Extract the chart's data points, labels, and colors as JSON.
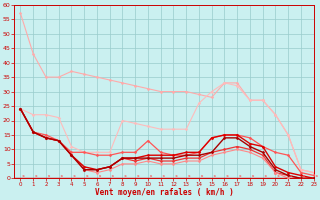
{
  "xlabel": "Vent moyen/en rafales ( km/h )",
  "xlim": [
    -0.5,
    23
  ],
  "ylim": [
    0,
    60
  ],
  "yticks": [
    0,
    5,
    10,
    15,
    20,
    25,
    30,
    35,
    40,
    45,
    50,
    55,
    60
  ],
  "xticks": [
    0,
    1,
    2,
    3,
    4,
    5,
    6,
    7,
    8,
    9,
    10,
    11,
    12,
    13,
    14,
    15,
    16,
    17,
    18,
    19,
    20,
    21,
    22,
    23
  ],
  "background_color": "#caf0f0",
  "grid_color": "#99cccc",
  "lines": [
    {
      "x": [
        0,
        1,
        2,
        3,
        4,
        5,
        6,
        7,
        8,
        9,
        10,
        11,
        12,
        13,
        14,
        15,
        16,
        17,
        18,
        19,
        20,
        21,
        22,
        23
      ],
      "y": [
        57,
        43,
        35,
        35,
        37,
        36,
        35,
        34,
        33,
        32,
        31,
        30,
        30,
        30,
        29,
        28,
        33,
        33,
        27,
        27,
        22,
        15,
        3,
        2
      ],
      "color": "#ffaaaa",
      "marker": "D",
      "markersize": 1.5,
      "linewidth": 0.8,
      "zorder": 2
    },
    {
      "x": [
        0,
        1,
        2,
        3,
        4,
        5,
        6,
        7,
        8,
        9,
        10,
        11,
        12,
        13,
        14,
        15,
        16,
        17,
        18,
        19,
        20,
        21,
        22,
        23
      ],
      "y": [
        24,
        22,
        22,
        21,
        11,
        9,
        9,
        9,
        20,
        19,
        18,
        17,
        17,
        17,
        26,
        30,
        33,
        32,
        27,
        27,
        22,
        15,
        3,
        2
      ],
      "color": "#ffbbbb",
      "marker": "D",
      "markersize": 1.5,
      "linewidth": 0.8,
      "zorder": 2
    },
    {
      "x": [
        0,
        1,
        2,
        3,
        4,
        5,
        6,
        7,
        8,
        9,
        10,
        11,
        12,
        13,
        14,
        15,
        16,
        17,
        18,
        19,
        20,
        21,
        22,
        23
      ],
      "y": [
        24,
        16,
        15,
        13,
        9,
        9,
        8,
        8,
        9,
        9,
        13,
        9,
        8,
        8,
        9,
        14,
        15,
        15,
        14,
        11,
        9,
        8,
        2,
        1
      ],
      "color": "#ff5555",
      "marker": "D",
      "markersize": 1.5,
      "linewidth": 0.9,
      "zorder": 3
    },
    {
      "x": [
        0,
        1,
        2,
        3,
        4,
        5,
        6,
        7,
        8,
        9,
        10,
        11,
        12,
        13,
        14,
        15,
        16,
        17,
        18,
        19,
        20,
        21,
        22,
        23
      ],
      "y": [
        24,
        16,
        14,
        13,
        8,
        4,
        3,
        4,
        7,
        7,
        8,
        8,
        8,
        9,
        9,
        14,
        15,
        15,
        12,
        11,
        4,
        2,
        1,
        0
      ],
      "color": "#dd0000",
      "marker": "D",
      "markersize": 1.5,
      "linewidth": 1.0,
      "zorder": 4
    },
    {
      "x": [
        0,
        1,
        2,
        3,
        4,
        5,
        6,
        7,
        8,
        9,
        10,
        11,
        12,
        13,
        14,
        15,
        16,
        17,
        18,
        19,
        20,
        21,
        22,
        23
      ],
      "y": [
        24,
        16,
        14,
        13,
        8,
        3,
        3,
        4,
        7,
        7,
        7,
        7,
        7,
        8,
        8,
        9,
        14,
        14,
        11,
        9,
        3,
        1,
        0,
        0
      ],
      "color": "#aa0000",
      "marker": "D",
      "markersize": 1.5,
      "linewidth": 1.0,
      "zorder": 4
    },
    {
      "x": [
        0,
        1,
        2,
        3,
        4,
        5,
        6,
        7,
        8,
        9,
        10,
        11,
        12,
        13,
        14,
        15,
        16,
        17,
        18,
        19,
        20,
        21,
        22,
        23
      ],
      "y": [
        24,
        16,
        14,
        13,
        8,
        3,
        3,
        4,
        7,
        6,
        7,
        6,
        6,
        7,
        7,
        9,
        10,
        11,
        10,
        8,
        2,
        1,
        0,
        0
      ],
      "color": "#ee3333",
      "marker": "D",
      "markersize": 1.5,
      "linewidth": 0.9,
      "zorder": 3
    },
    {
      "x": [
        0,
        1,
        2,
        3,
        4,
        5,
        6,
        7,
        8,
        9,
        10,
        11,
        12,
        13,
        14,
        15,
        16,
        17,
        18,
        19,
        20,
        21,
        22,
        23
      ],
      "y": [
        24,
        16,
        14,
        13,
        8,
        3,
        2,
        3,
        5,
        5,
        6,
        5,
        5,
        6,
        6,
        8,
        9,
        10,
        9,
        7,
        2,
        0,
        0,
        0
      ],
      "color": "#ff8888",
      "marker": "D",
      "markersize": 1.5,
      "linewidth": 0.8,
      "zorder": 3
    }
  ],
  "arrow_color": "#ee6666",
  "spine_color": "#cc0000",
  "tick_color": "#cc0000",
  "xlabel_color": "#cc0000",
  "xlabel_fontsize": 5.5,
  "ytick_fontsize": 4.5,
  "xtick_fontsize": 4.0
}
